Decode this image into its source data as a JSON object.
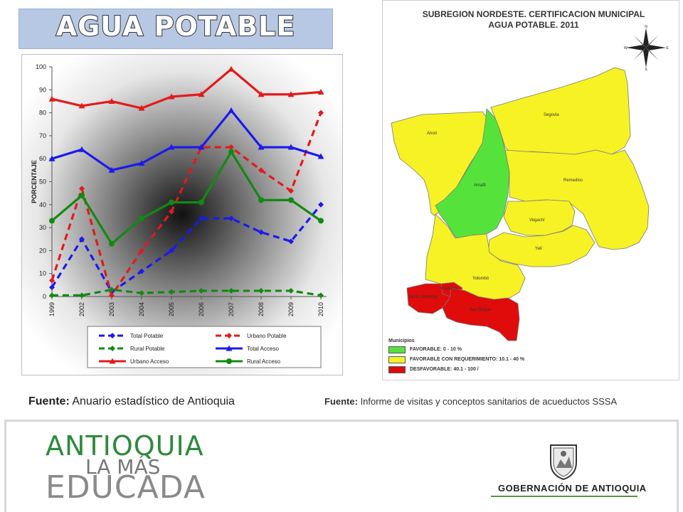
{
  "banner": {
    "title": "AGUA POTABLE"
  },
  "chart_data": {
    "type": "line",
    "ylabel": "PORCENTAJE",
    "ylim": [
      0,
      100
    ],
    "yticks": [
      "0",
      "10",
      "20",
      "30",
      "40",
      "50",
      "60",
      "70",
      "80",
      "90",
      "100"
    ],
    "categories": [
      "1999",
      "2002",
      "2003",
      "2004",
      "2005",
      "2006",
      "2007",
      "2008",
      "2009",
      "2010"
    ],
    "series": [
      {
        "name": "Total Potable",
        "color": "#1a1aee",
        "dash": true,
        "marker": "diamond",
        "values": [
          4,
          25,
          2,
          11,
          20,
          34,
          34,
          28,
          24,
          40
        ]
      },
      {
        "name": "Urbano Potable",
        "color": "#e31a1c",
        "dash": true,
        "marker": "diamond",
        "values": [
          7,
          47,
          0.5,
          20,
          37,
          65,
          65,
          55,
          46,
          80
        ]
      },
      {
        "name": "Rural Potable",
        "color": "#128a12",
        "dash": true,
        "marker": "diamond",
        "values": [
          0.5,
          0.5,
          3,
          1.5,
          2,
          2.5,
          2.5,
          2.5,
          2.5,
          0.5
        ]
      },
      {
        "name": "Total Acceso",
        "color": "#1a1aee",
        "dash": false,
        "marker": "triangle",
        "values": [
          60,
          64,
          55,
          58,
          65,
          65,
          81,
          65,
          65,
          61
        ]
      },
      {
        "name": "Urbano Acceso",
        "color": "#e31a1c",
        "dash": false,
        "marker": "triangle",
        "values": [
          86,
          83,
          85,
          82,
          87,
          88,
          99,
          88,
          88,
          89
        ]
      },
      {
        "name": "Rural Acceso",
        "color": "#128a12",
        "dash": false,
        "marker": "circle",
        "values": [
          33,
          44,
          23,
          34,
          41,
          41,
          63,
          42,
          42,
          33
        ]
      }
    ]
  },
  "map": {
    "title_line1": "SUBREGION NORDESTE. CERTIFICACION MUNICIPAL",
    "title_line2": "AGUA POTABLE.  2011",
    "compass": {
      "n": "N",
      "s": "S",
      "e": "E",
      "w": "W"
    },
    "municipalities": [
      "Anorí",
      "Segovia",
      "Amalfi",
      "Remedios",
      "Vegachí",
      "Yalí",
      "Yolombó",
      "Santo Domingo",
      "Cisneros",
      "San Roque"
    ],
    "legend_title": "Municipios",
    "legend": [
      {
        "label": "FAVORABLE: 0 - 10 %",
        "color": "#55e33b"
      },
      {
        "label": "FAVORABLE CON REQUERIMIENTO: 10.1 - 40 %",
        "color": "#f7f224"
      },
      {
        "label": "DESFAVORABLE: 40.1 - 100 /",
        "color": "#e00b0b"
      }
    ]
  },
  "sources": {
    "left_bold": "Fuente:",
    "left_text": " Anuario estadístico de Antioquia",
    "right_bold": "Fuente:",
    "right_text": " Informe de visitas y conceptos sanitarios de acueductos SSSA"
  },
  "footer": {
    "logo_line1": "ANTIOQUIA",
    "logo_line2": "LA MÁS",
    "logo_line3": "EDUCADA",
    "gov_text": "GOBERNACIÓN DE ANTIOQUIA"
  }
}
